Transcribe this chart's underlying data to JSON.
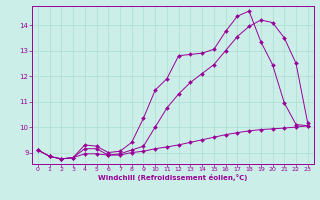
{
  "xlabel": "Windchill (Refroidissement éolien,°C)",
  "background_color": "#cceee8",
  "line_color": "#990099",
  "grid_color": "#aaddcc",
  "xlim": [
    -0.5,
    23.5
  ],
  "ylim": [
    8.55,
    14.75
  ],
  "yticks": [
    9,
    10,
    11,
    12,
    13,
    14
  ],
  "xticks": [
    0,
    1,
    2,
    3,
    4,
    5,
    6,
    7,
    8,
    9,
    10,
    11,
    12,
    13,
    14,
    15,
    16,
    17,
    18,
    19,
    20,
    21,
    22,
    23
  ],
  "line1_x": [
    0,
    1,
    2,
    3,
    4,
    5,
    6,
    7,
    8,
    9,
    10,
    11,
    12,
    13,
    14,
    15,
    16,
    17,
    18,
    19,
    20,
    21,
    22,
    23
  ],
  "line1_y": [
    9.1,
    8.85,
    8.75,
    8.8,
    9.3,
    9.25,
    9.0,
    9.05,
    9.4,
    10.35,
    11.45,
    11.9,
    12.8,
    12.85,
    12.9,
    13.05,
    13.75,
    14.35,
    14.55,
    13.35,
    12.45,
    10.95,
    10.1,
    10.05
  ],
  "line2_x": [
    0,
    1,
    2,
    3,
    4,
    5,
    6,
    7,
    8,
    9,
    10,
    11,
    12,
    13,
    14,
    15,
    16,
    17,
    18,
    19,
    20,
    21,
    22,
    23
  ],
  "line2_y": [
    9.1,
    8.85,
    8.75,
    8.8,
    9.15,
    9.15,
    8.9,
    8.95,
    9.1,
    9.25,
    10.0,
    10.75,
    11.3,
    11.75,
    12.1,
    12.45,
    13.0,
    13.55,
    13.95,
    14.2,
    14.1,
    13.5,
    12.5,
    10.15
  ],
  "line3_x": [
    0,
    1,
    2,
    3,
    4,
    5,
    6,
    7,
    8,
    9,
    10,
    11,
    12,
    13,
    14,
    15,
    16,
    17,
    18,
    19,
    20,
    21,
    22,
    23
  ],
  "line3_y": [
    9.1,
    8.85,
    8.75,
    8.8,
    8.95,
    8.95,
    8.9,
    8.9,
    9.0,
    9.05,
    9.15,
    9.22,
    9.3,
    9.4,
    9.5,
    9.6,
    9.7,
    9.78,
    9.85,
    9.9,
    9.93,
    9.96,
    10.0,
    10.05
  ]
}
